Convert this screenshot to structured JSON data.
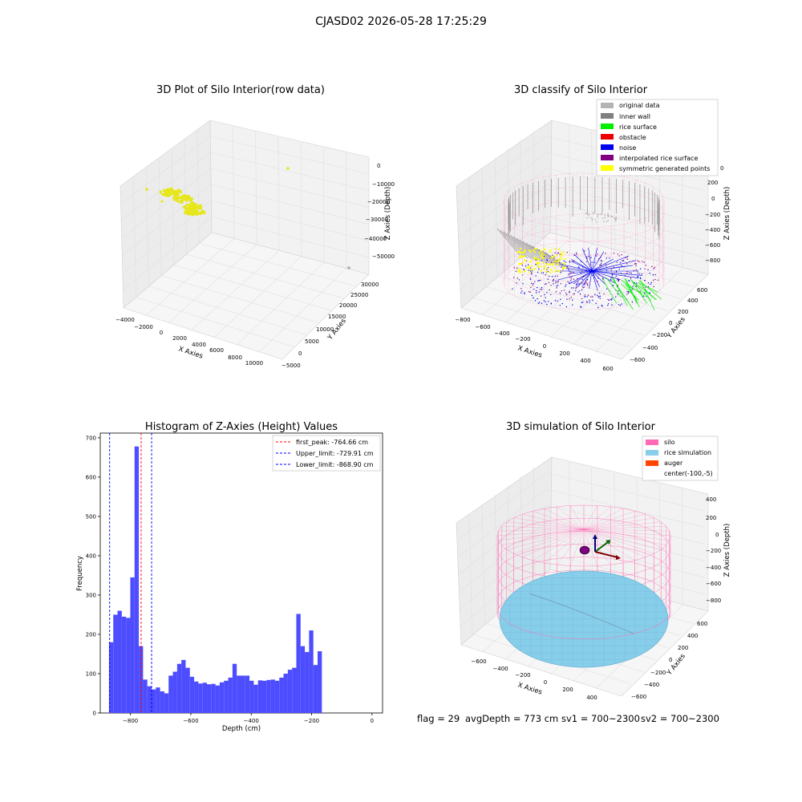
{
  "figure": {
    "suptitle": "CJASD02 2026-05-28 17:25:29",
    "footer": {
      "flag": "flag = 29",
      "avg_depth": "avgDepth = 773 cm",
      "sv1": "sv1 = 700~2300",
      "sv2": "sv2 = 700~2300"
    },
    "colors": {
      "hist_bar": "#4d4dff",
      "raw_points": "#e6e619",
      "original_data": "#b3b3b3",
      "inner_wall": "#808080",
      "rice_surface": "#00ee00",
      "obstacle": "#ee0000",
      "noise": "#0000ee",
      "interpolated_rice_surface": "#800080",
      "symmetric_generated_points": "#ffff00",
      "silo": "#ff69b4",
      "rice_simulation": "#87ceeb",
      "auger": "#ff4500"
    }
  },
  "chart_data": [
    {
      "type": "scatter",
      "title": "3D Plot of Silo Interior(row data)",
      "xlabel": "X Axies",
      "ylabel": "Y Axies",
      "zlabel": "Z Axies (Depth)",
      "xticks": [
        "−4000",
        "−2000",
        "0",
        "2000",
        "4000",
        "6000",
        "8000",
        "10000"
      ],
      "yticks": [
        "−5000",
        "0",
        "5000",
        "10000",
        "15000",
        "20000",
        "25000",
        "30000"
      ],
      "zticks": [
        "0",
        "−10000",
        "−20000",
        "−30000",
        "−40000",
        "−50000"
      ],
      "xlim": [
        -4500,
        11500
      ],
      "ylim": [
        -5500,
        31000
      ],
      "zlim": [
        -57000,
        2000
      ],
      "note_points": "cluster near x≈-1500..1500, y≈-4000..1000, z≈-5000..-17000; isolated points near (9500,-3000,-500) and (11000,30000,-52000)"
    },
    {
      "type": "scatter",
      "title": "3D classify of Silo Interior",
      "xlabel": "X Axies",
      "ylabel": "Y Axies",
      "zlabel": "Z Axies (Depth)",
      "xticks": [
        "−800",
        "−600",
        "−400",
        "−200",
        "0",
        "200",
        "400",
        "600"
      ],
      "yticks": [
        "−600",
        "−400",
        "−200",
        "0",
        "200",
        "400",
        "600"
      ],
      "zticks": [
        "200",
        "0",
        "−200",
        "−400",
        "−600",
        "−800"
      ],
      "legend_loc": "upper right",
      "legend": [
        "original data",
        "inner wall",
        "rice surface",
        "obstacle",
        "noise",
        "interpolated rice surface",
        "symmetric generated points"
      ],
      "legend_partial_tick": "0"
    },
    {
      "type": "bar",
      "title": "Histogram of Z-Axies (Height) Values",
      "xlabel": "Depth (cm)",
      "ylabel": "Frequency",
      "xlim": [
        -900,
        35
      ],
      "ylim": [
        0,
        712
      ],
      "xticks": [
        -800,
        -600,
        -400,
        -200,
        0
      ],
      "yticks": [
        0,
        100,
        200,
        300,
        400,
        500,
        600,
        700
      ],
      "xtick_labels": [
        "−800",
        "−600",
        "−400",
        "−200",
        "0"
      ],
      "ytick_labels": [
        "0",
        "100",
        "200",
        "300",
        "400",
        "500",
        "600",
        "700"
      ],
      "bin_start": -871,
      "bin_width": 14.1,
      "values": [
        180,
        250,
        260,
        245,
        242,
        345,
        678,
        170,
        85,
        68,
        60,
        65,
        55,
        50,
        95,
        105,
        125,
        135,
        115,
        92,
        80,
        75,
        77,
        73,
        74,
        70,
        78,
        82,
        90,
        125,
        95,
        95,
        95,
        82,
        72,
        83,
        82,
        84,
        85,
        82,
        90,
        100,
        110,
        115,
        252,
        170,
        155,
        210,
        122,
        157
      ],
      "vlines": [
        {
          "x": -764.66,
          "color": "#ff0000"
        },
        {
          "x": -729.91,
          "color": "#0000ff"
        },
        {
          "x": -868.9,
          "color": "#0000ff"
        }
      ],
      "legend_loc": "upper right",
      "legend": [
        "first_peak: -764.66 cm",
        "Upper_limit: -729.91 cm",
        "Lower_limit: -868.90 cm"
      ]
    },
    {
      "type": "area",
      "title": "3D simulation of Silo Interior",
      "xlabel": "X Axies",
      "ylabel": "Y Axies",
      "zlabel": "Z Axies (Depth)",
      "xticks": [
        "−600",
        "−400",
        "−200",
        "0",
        "200",
        "400"
      ],
      "yticks": [
        "−600",
        "−400",
        "−200",
        "0",
        "200",
        "400",
        "600"
      ],
      "zticks": [
        "400",
        "200",
        "0",
        "−200",
        "−400",
        "−600",
        "−800"
      ],
      "legend_loc": "upper right",
      "legend": [
        "silo",
        "rice simulation",
        "auger",
        "center(-100,-5)"
      ]
    }
  ]
}
